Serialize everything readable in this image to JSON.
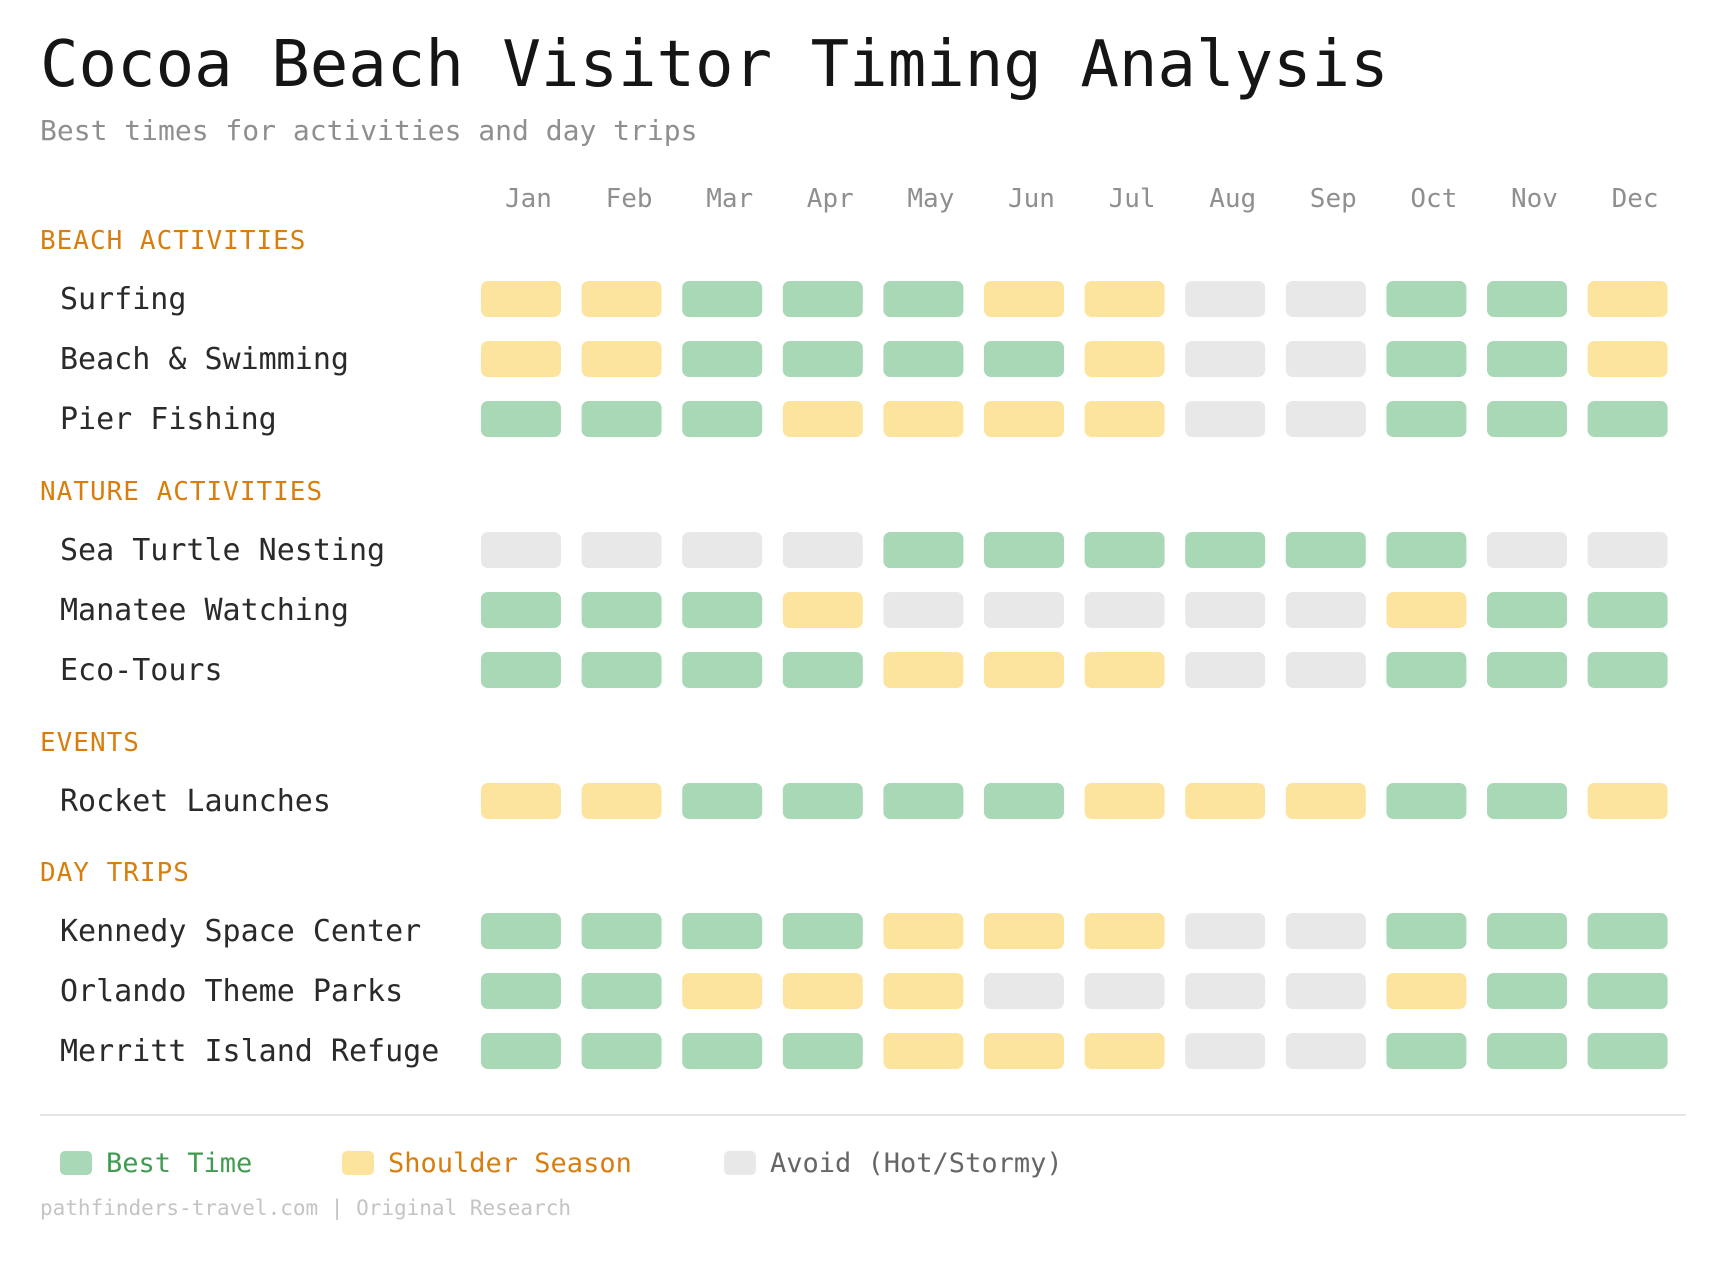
{
  "title": "Cocoa Beach Visitor Timing Analysis",
  "subtitle": "Best times for activities and day trips",
  "colors": {
    "best": "#a8d8b6",
    "shoulder": "#fce49e",
    "avoid": "#e8e8e8",
    "section": "#d97e0d",
    "best_text": "#3e9b4f",
    "shoulder_text": "#d97e0d",
    "avoid_text": "#666666"
  },
  "legend": {
    "best": "Best Time",
    "shoulder": "Shoulder Season",
    "avoid": "Avoid (Hot/Stormy)"
  },
  "footer": "pathfinders-travel.com | Original Research",
  "chart_data": {
    "type": "heatmap",
    "months": [
      "Jan",
      "Feb",
      "Mar",
      "Apr",
      "May",
      "Jun",
      "Jul",
      "Aug",
      "Sep",
      "Oct",
      "Nov",
      "Dec"
    ],
    "value_key": {
      "2": "Best Time",
      "1": "Shoulder Season",
      "0": "Avoid (Hot/Stormy)"
    },
    "sections": [
      {
        "name": "BEACH ACTIVITIES",
        "rows": [
          {
            "label": "Surfing",
            "values": [
              1,
              1,
              2,
              2,
              2,
              1,
              1,
              0,
              0,
              2,
              2,
              1
            ]
          },
          {
            "label": "Beach & Swimming",
            "values": [
              1,
              1,
              2,
              2,
              2,
              2,
              1,
              0,
              0,
              2,
              2,
              1
            ]
          },
          {
            "label": "Pier Fishing",
            "values": [
              2,
              2,
              2,
              1,
              1,
              1,
              1,
              0,
              0,
              2,
              2,
              2
            ]
          }
        ]
      },
      {
        "name": "NATURE ACTIVITIES",
        "rows": [
          {
            "label": "Sea Turtle Nesting",
            "values": [
              0,
              0,
              0,
              0,
              2,
              2,
              2,
              2,
              2,
              2,
              0,
              0
            ]
          },
          {
            "label": "Manatee Watching",
            "values": [
              2,
              2,
              2,
              1,
              0,
              0,
              0,
              0,
              0,
              1,
              2,
              2
            ]
          },
          {
            "label": "Eco-Tours",
            "values": [
              2,
              2,
              2,
              2,
              1,
              1,
              1,
              0,
              0,
              2,
              2,
              2
            ]
          }
        ]
      },
      {
        "name": "EVENTS",
        "rows": [
          {
            "label": "Rocket Launches",
            "values": [
              1,
              1,
              2,
              2,
              2,
              2,
              1,
              1,
              1,
              2,
              2,
              1
            ]
          }
        ]
      },
      {
        "name": "DAY TRIPS",
        "rows": [
          {
            "label": "Kennedy Space Center",
            "values": [
              2,
              2,
              2,
              2,
              1,
              1,
              1,
              0,
              0,
              2,
              2,
              2
            ]
          },
          {
            "label": "Orlando Theme Parks",
            "values": [
              2,
              2,
              1,
              1,
              1,
              0,
              0,
              0,
              0,
              1,
              2,
              2
            ]
          },
          {
            "label": "Merritt Island Refuge",
            "values": [
              2,
              2,
              2,
              2,
              1,
              1,
              1,
              0,
              0,
              2,
              2,
              2
            ]
          }
        ]
      }
    ]
  }
}
